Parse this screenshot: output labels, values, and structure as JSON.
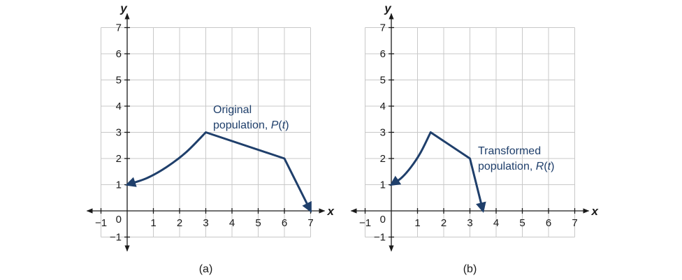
{
  "chart_data": [
    {
      "type": "line",
      "caption": "(a)",
      "xlabel": "x",
      "ylabel": "y",
      "xlim": [
        -1,
        7
      ],
      "ylim": [
        -1,
        7
      ],
      "xticks": [
        -1,
        1,
        2,
        3,
        4,
        5,
        6,
        7
      ],
      "yticks": [
        -1,
        1,
        2,
        3,
        4,
        5,
        6,
        7
      ],
      "origin_label": "0",
      "annotation": {
        "line1": "Original",
        "line2": "population, ",
        "func": "P",
        "var": "t"
      },
      "series": [
        {
          "points": [
            [
              0,
              1
            ],
            [
              0.75,
              1.25
            ],
            [
              1.5,
              1.67
            ],
            [
              2.25,
              2.24
            ],
            [
              3,
              3
            ],
            [
              6,
              2
            ],
            [
              7,
              0
            ]
          ],
          "arrow_start": true,
          "arrow_end": true
        }
      ]
    },
    {
      "type": "line",
      "caption": "(b)",
      "xlabel": "x",
      "ylabel": "y",
      "xlim": [
        -1,
        7
      ],
      "ylim": [
        -1,
        7
      ],
      "xticks": [
        -1,
        1,
        2,
        3,
        4,
        5,
        6,
        7
      ],
      "yticks": [
        -1,
        1,
        2,
        3,
        4,
        5,
        6,
        7
      ],
      "origin_label": "0",
      "annotation": {
        "line1": "Transformed",
        "line2": "population, ",
        "func": "R",
        "var": "t"
      },
      "series": [
        {
          "points": [
            [
              0,
              1
            ],
            [
              0.375,
              1.25
            ],
            [
              0.75,
              1.67
            ],
            [
              1.125,
              2.24
            ],
            [
              1.5,
              3
            ],
            [
              3,
              2
            ],
            [
              3.5,
              0
            ]
          ],
          "arrow_start": true,
          "arrow_end": true
        }
      ]
    }
  ]
}
